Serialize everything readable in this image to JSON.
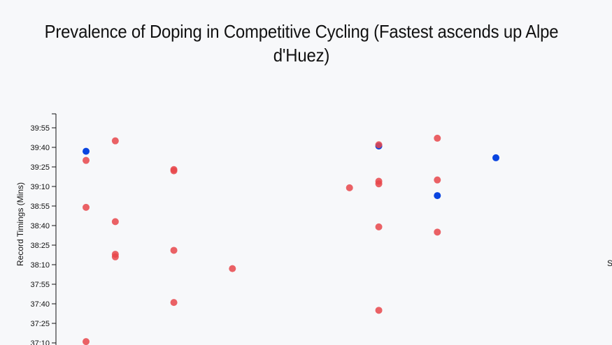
{
  "chart_data": {
    "type": "scatter",
    "title": "Prevalence of Doping in Competitive Cycling (Fastest ascends up Alpe d'Huez)",
    "ylabel": "Record Timings (Mins)",
    "xlabel": "",
    "y_unit": "seconds",
    "yticks": [
      {
        "value": 2230,
        "label": "37:10"
      },
      {
        "value": 2245,
        "label": "37:25"
      },
      {
        "value": 2260,
        "label": "37:40"
      },
      {
        "value": 2275,
        "label": "37:55"
      },
      {
        "value": 2290,
        "label": "38:10"
      },
      {
        "value": 2305,
        "label": "38:25"
      },
      {
        "value": 2320,
        "label": "38:40"
      },
      {
        "value": 2335,
        "label": "38:55"
      },
      {
        "value": 2350,
        "label": "39:10"
      },
      {
        "value": 2365,
        "label": "39:25"
      },
      {
        "value": 2380,
        "label": "39:40"
      },
      {
        "value": 2395,
        "label": "39:55"
      }
    ],
    "xlim": [
      1993,
      2016
    ],
    "ylim": [
      2228,
      2405
    ],
    "grid": false,
    "colors": {
      "doping": "#e8474a",
      "no_doping": "#0a45e0"
    },
    "points": [
      {
        "x": 1995,
        "y": 2377,
        "category": "no_doping"
      },
      {
        "x": 1995,
        "y": 2370,
        "category": "doping"
      },
      {
        "x": 1995,
        "y": 2334,
        "category": "doping"
      },
      {
        "x": 1995,
        "y": 2231,
        "category": "doping"
      },
      {
        "x": 1996,
        "y": 2385,
        "category": "doping"
      },
      {
        "x": 1996,
        "y": 2323,
        "category": "doping"
      },
      {
        "x": 1996,
        "y": 2298,
        "category": "doping"
      },
      {
        "x": 1996,
        "y": 2296,
        "category": "doping"
      },
      {
        "x": 1998,
        "y": 2363,
        "category": "doping"
      },
      {
        "x": 1998,
        "y": 2362,
        "category": "doping"
      },
      {
        "x": 1998,
        "y": 2301,
        "category": "doping"
      },
      {
        "x": 1998,
        "y": 2261,
        "category": "doping"
      },
      {
        "x": 2000,
        "y": 2287,
        "category": "doping"
      },
      {
        "x": 2004,
        "y": 2349,
        "category": "doping"
      },
      {
        "x": 2005,
        "y": 2381,
        "category": "no_doping"
      },
      {
        "x": 2005,
        "y": 2382,
        "category": "doping"
      },
      {
        "x": 2005,
        "y": 2354,
        "category": "doping"
      },
      {
        "x": 2005,
        "y": 2352,
        "category": "doping"
      },
      {
        "x": 2005,
        "y": 2319,
        "category": "doping"
      },
      {
        "x": 2005,
        "y": 2255,
        "category": "doping"
      },
      {
        "x": 2007,
        "y": 2387,
        "category": "doping"
      },
      {
        "x": 2007,
        "y": 2355,
        "category": "doping"
      },
      {
        "x": 2007,
        "y": 2343,
        "category": "no_doping"
      },
      {
        "x": 2007,
        "y": 2315,
        "category": "doping"
      },
      {
        "x": 2009,
        "y": 2372,
        "category": "no_doping"
      }
    ]
  },
  "cut_text": "S"
}
